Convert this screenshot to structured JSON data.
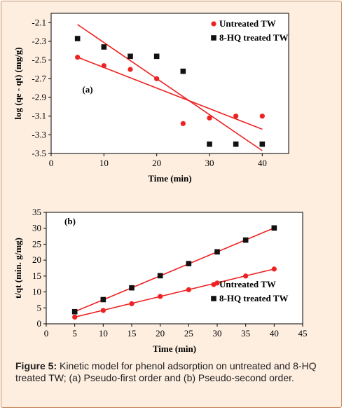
{
  "caption": {
    "label": "Figure 5:",
    "text": " Kinetic model for phenol adsorption on untreated and 8-HQ treated TW; (a) Pseudo-first order and (b) Pseudo-second order."
  },
  "colors": {
    "untreated": "#ee2222",
    "treated": "#111111",
    "panel_bg": "#fdeee0",
    "plot_bg": "#ffffff",
    "border": "#c98a5e"
  },
  "chart_data": [
    {
      "type": "scatter",
      "panel_label": "(a)",
      "xlabel": "Time (min)",
      "ylabel": "log (qe - qt) (mg/g)",
      "xlim": [
        0,
        45
      ],
      "ylim": [
        -3.5,
        -2.0
      ],
      "xticks": [
        0,
        10,
        20,
        30,
        40
      ],
      "yticks": [
        -2.1,
        -2.3,
        -2.5,
        -2.7,
        -2.9,
        -3.1,
        -3.3,
        -3.5
      ],
      "ytick_labels": [
        "-2.1",
        "-2.3",
        "-2.5",
        "-2.7",
        "-2.9",
        "-3.1",
        "-3.3",
        "-3.5"
      ],
      "legend_position": "top-right",
      "series": [
        {
          "name": "Untreated TW",
          "marker": "circle",
          "color": "#ee2222",
          "x": [
            5,
            10,
            15,
            20,
            25,
            30,
            35,
            40
          ],
          "y": [
            -2.47,
            -2.56,
            -2.6,
            -2.7,
            -3.18,
            -3.12,
            -3.1,
            -3.1
          ],
          "trend": [
            [
              5,
              -2.47
            ],
            [
              40,
              -3.24
            ]
          ]
        },
        {
          "name": "8-HQ treated TW",
          "marker": "square",
          "color": "#111111",
          "x": [
            5,
            10,
            15,
            20,
            25,
            30,
            35,
            40
          ],
          "y": [
            -2.27,
            -2.36,
            -2.46,
            -2.46,
            -2.62,
            -3.4,
            -3.4,
            -3.4
          ],
          "trend": [
            [
              5,
              -2.12
            ],
            [
              40,
              -3.47
            ]
          ]
        }
      ]
    },
    {
      "type": "scatter",
      "panel_label": "(b)",
      "xlabel": "Time (min)",
      "ylabel": "t/qt (min. g/mg)",
      "xlim": [
        0,
        45
      ],
      "ylim": [
        0,
        35
      ],
      "xticks": [
        0,
        5,
        10,
        15,
        20,
        25,
        30,
        35,
        40,
        45
      ],
      "yticks": [
        0,
        5,
        10,
        15,
        20,
        25,
        30,
        35
      ],
      "ytick_labels": [
        "0",
        "5",
        "10",
        "15",
        "20",
        "25",
        "30",
        "35"
      ],
      "legend_position": "bottom-right",
      "series": [
        {
          "name": "Untreated TW",
          "marker": "circle",
          "color": "#ee2222",
          "x": [
            5,
            10,
            15,
            20,
            25,
            30,
            35,
            40
          ],
          "y": [
            2.1,
            4.2,
            6.3,
            8.6,
            10.7,
            12.8,
            15.0,
            17.2
          ],
          "trend": [
            [
              5,
              2.1
            ],
            [
              40,
              17.2
            ]
          ]
        },
        {
          "name": "8-HQ treated TW",
          "marker": "square",
          "color": "#111111",
          "x": [
            5,
            10,
            15,
            20,
            25,
            30,
            35,
            40
          ],
          "y": [
            3.8,
            7.6,
            11.3,
            15.1,
            18.9,
            22.6,
            26.3,
            30.1
          ],
          "trend": [
            [
              5,
              3.8
            ],
            [
              40,
              30.1
            ]
          ]
        }
      ]
    }
  ]
}
